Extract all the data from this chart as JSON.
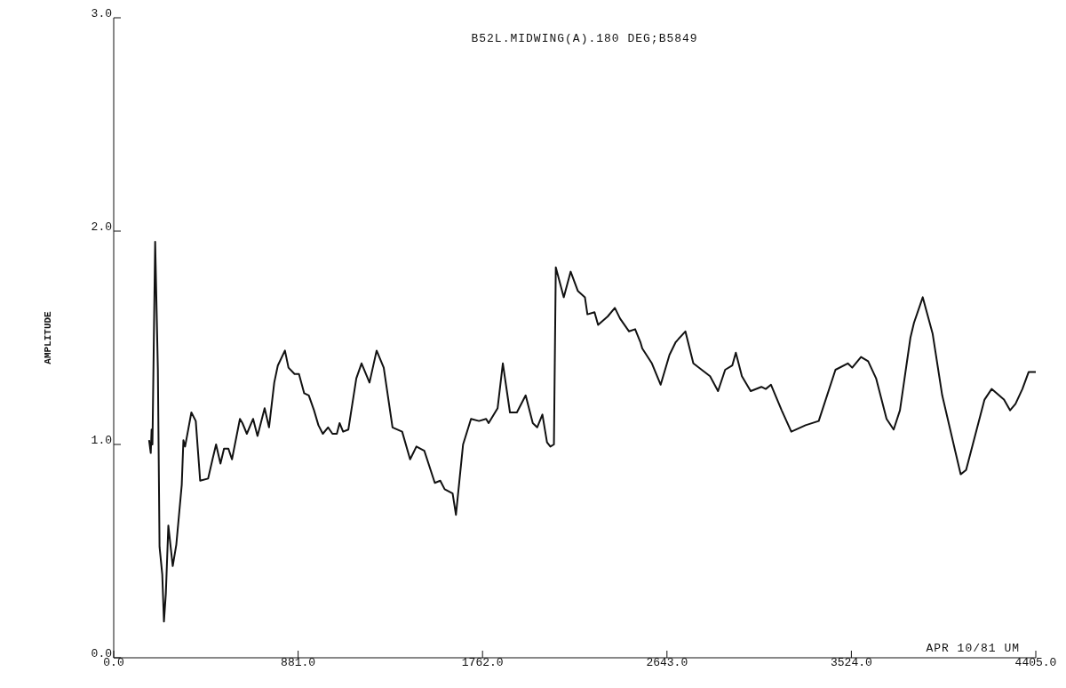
{
  "chart_data": {
    "type": "line",
    "ylabel": "AMPLITUDE",
    "annotations": [
      "B52L.MIDWING(A).180 DEG;B5849",
      "APR 10/81 UM"
    ],
    "xlim": [
      0,
      4405
    ],
    "xticks": [
      {
        "value": 0,
        "label": "0.0"
      },
      {
        "value": 881,
        "label": "881.0"
      },
      {
        "value": 1762,
        "label": "1762.0"
      },
      {
        "value": 2643,
        "label": "2643.0"
      },
      {
        "value": 3524,
        "label": "3524.0"
      },
      {
        "value": 4405,
        "label": "4405.0"
      }
    ],
    "ylim": [
      0,
      3
    ],
    "yticks": [
      {
        "value": 0,
        "label": "0.0"
      },
      {
        "value": 1,
        "label": "1.0"
      },
      {
        "value": 2,
        "label": "2.0"
      },
      {
        "value": 3,
        "label": "3.0"
      }
    ],
    "grid": false,
    "marker": "none",
    "line_style": "solid",
    "series": [
      {
        "color": "#111111",
        "x": [
          169,
          177,
          181,
          185,
          198,
          211,
          219,
          232,
          240,
          249,
          261,
          282,
          299,
          325,
          333,
          341,
          371,
          392,
          413,
          451,
          472,
          489,
          510,
          527,
          548,
          565,
          603,
          615,
          636,
          666,
          687,
          721,
          742,
          767,
          784,
          818,
          835,
          864,
          885,
          910,
          932,
          957,
          978,
          999,
          1024,
          1045,
          1066,
          1079,
          1096,
          1121,
          1159,
          1184,
          1222,
          1256,
          1290,
          1332,
          1378,
          1416,
          1446,
          1484,
          1534,
          1560,
          1581,
          1619,
          1635,
          1669,
          1707,
          1745,
          1779,
          1791,
          1834,
          1859,
          1893,
          1926,
          1968,
          2002,
          2023,
          2048,
          2070,
          2086,
          2103,
          2112,
          2150,
          2183,
          2217,
          2251,
          2263,
          2297,
          2314,
          2360,
          2394,
          2419,
          2462,
          2491,
          2516,
          2525,
          2571,
          2613,
          2655,
          2685,
          2731,
          2769,
          2849,
          2887,
          2921,
          2955,
          2972,
          3001,
          3043,
          3094,
          3115,
          3140,
          3191,
          3237,
          3305,
          3368,
          3448,
          3507,
          3528,
          3570,
          3604,
          3642,
          3692,
          3726,
          3756,
          3806,
          3823,
          3865,
          3912,
          3958,
          4046,
          4072,
          4160,
          4194,
          4253,
          4282,
          4308,
          4341,
          4371,
          4405
        ],
        "values": [
          1.02,
          0.96,
          1.07,
          1.0,
          1.95,
          1.35,
          0.52,
          0.39,
          0.17,
          0.3,
          0.62,
          0.43,
          0.53,
          0.81,
          1.02,
          0.99,
          1.15,
          1.11,
          0.83,
          0.84,
          0.93,
          1.0,
          0.91,
          0.98,
          0.98,
          0.93,
          1.12,
          1.1,
          1.05,
          1.12,
          1.04,
          1.17,
          1.08,
          1.29,
          1.37,
          1.44,
          1.36,
          1.33,
          1.33,
          1.24,
          1.23,
          1.16,
          1.09,
          1.05,
          1.08,
          1.05,
          1.05,
          1.1,
          1.06,
          1.07,
          1.31,
          1.38,
          1.29,
          1.44,
          1.36,
          1.08,
          1.06,
          0.93,
          0.99,
          0.97,
          0.82,
          0.83,
          0.79,
          0.77,
          0.67,
          1.0,
          1.12,
          1.11,
          1.12,
          1.1,
          1.17,
          1.38,
          1.15,
          1.15,
          1.23,
          1.1,
          1.08,
          1.14,
          1.01,
          0.99,
          1.0,
          1.83,
          1.69,
          1.81,
          1.72,
          1.69,
          1.61,
          1.62,
          1.56,
          1.6,
          1.64,
          1.59,
          1.53,
          1.54,
          1.48,
          1.45,
          1.38,
          1.28,
          1.42,
          1.48,
          1.53,
          1.38,
          1.32,
          1.25,
          1.35,
          1.37,
          1.43,
          1.32,
          1.25,
          1.27,
          1.26,
          1.28,
          1.16,
          1.06,
          1.09,
          1.11,
          1.35,
          1.38,
          1.36,
          1.41,
          1.39,
          1.31,
          1.12,
          1.07,
          1.16,
          1.5,
          1.57,
          1.69,
          1.52,
          1.23,
          0.86,
          0.88,
          1.21,
          1.26,
          1.21,
          1.16,
          1.19,
          1.26,
          1.34,
          1.34
        ]
      }
    ]
  }
}
